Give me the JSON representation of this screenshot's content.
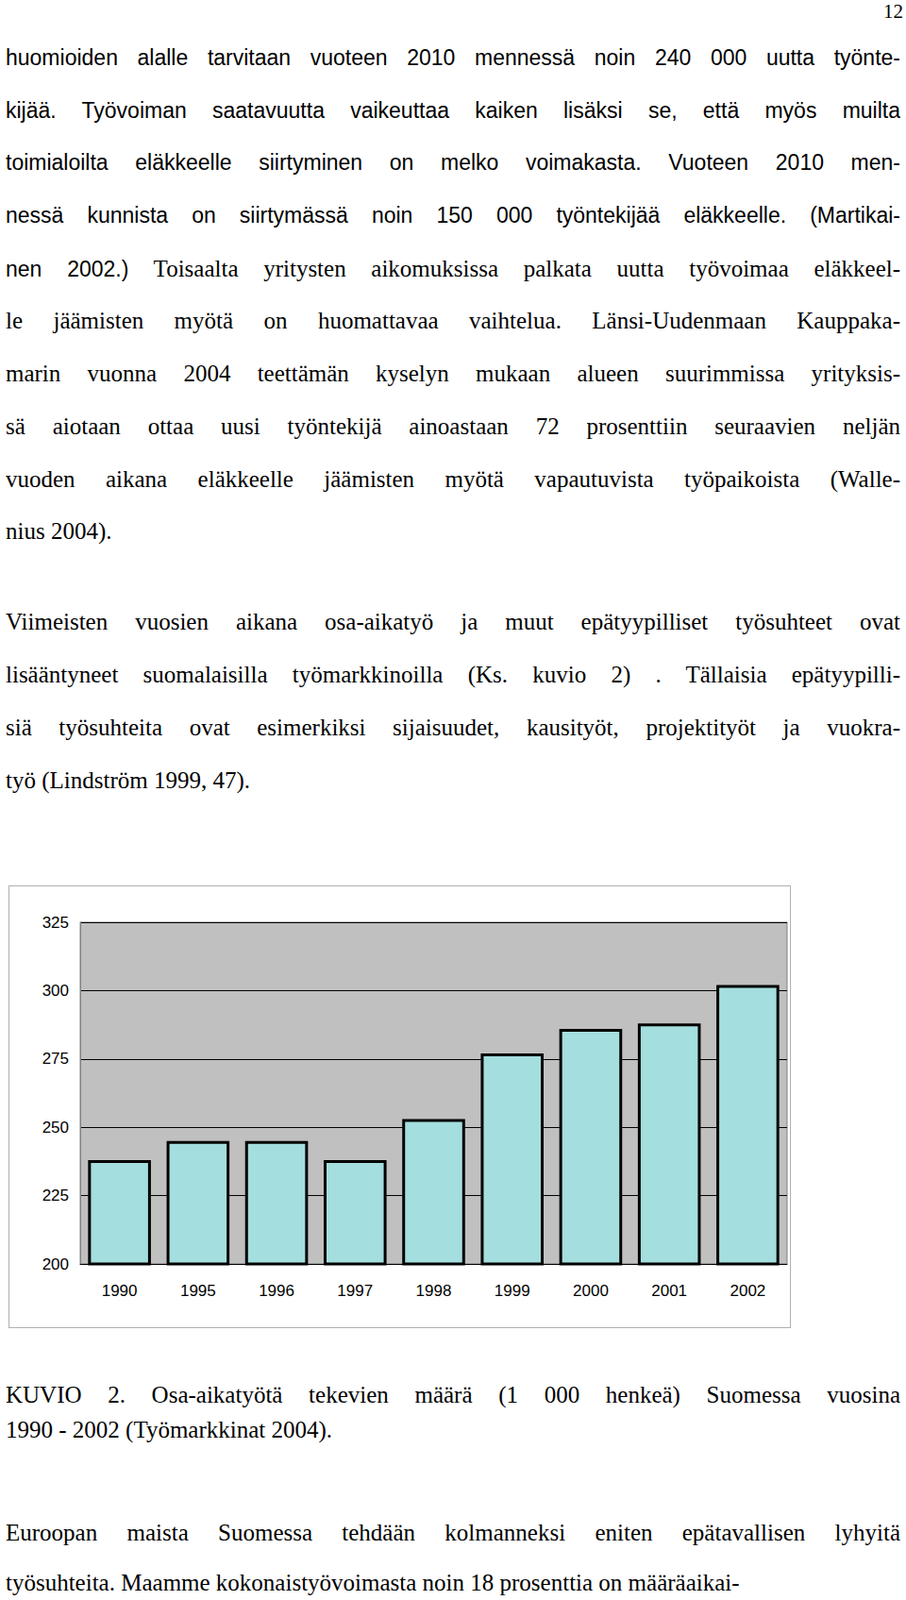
{
  "page_number": "12",
  "paragraphs": [
    {
      "lines": [
        [
          {
            "text": "huomioiden alalle tarvitaan vuoteen 2010 mennessä noin 240 000 uutta työnte-",
            "font": "sans"
          }
        ],
        [
          {
            "text": "kijää. Työvoiman saatavuutta vaikeuttaa kaiken lisäksi se, että myös muilta",
            "font": "sans"
          }
        ],
        [
          {
            "text": "toimialoilta eläkkeelle siirtyminen on melko voimakasta. Vuoteen 2010 men-",
            "font": "sans"
          }
        ],
        [
          {
            "text": "nessä kunnista on siirtymässä noin 150 000 työntekijää eläkkeelle. (Martikai-",
            "font": "sans"
          }
        ],
        [
          {
            "text": "nen 2002.)",
            "font": "sans"
          },
          {
            "text": " Toisaalta yritysten aikomuksissa palkata uutta työvoimaa eläkkeel-",
            "font": "serif"
          }
        ],
        [
          {
            "text": "le jäämisten myötä on huomattavaa vaihtelua. Länsi-Uudenmaan Kauppaka-",
            "font": "serif"
          }
        ],
        [
          {
            "text": "marin vuonna 2004 teettämän kyselyn mukaan alueen suurimmissa yrityksis-",
            "font": "serif"
          }
        ],
        [
          {
            "text": "sä aiotaan ottaa uusi työntekijä ainoastaan 72 prosenttiin seuraavien neljän",
            "font": "serif"
          }
        ],
        [
          {
            "text": "vuoden aikana eläkkeelle jäämisten myötä vapautuvista työpaikoista (Walle-",
            "font": "serif"
          }
        ],
        [
          {
            "text": "nius 2004).",
            "font": "serif"
          }
        ]
      ]
    },
    {
      "lines": [
        [
          {
            "text": "Viimeisten vuosien aikana osa-aikatyö ja muut epätyypilliset työsuhteet ovat",
            "font": "serif"
          }
        ],
        [
          {
            "text": "lisääntyneet suomalaisilla työmarkkinoilla (Ks. kuvio 2) . Tällaisia epätyypilli-",
            "font": "serif"
          }
        ],
        [
          {
            "text": "siä työsuhteita ovat esimerkiksi sijaisuudet, kausityöt, projektityöt ja vuokra-",
            "font": "serif"
          }
        ],
        [
          {
            "text": "työ (Lindström 1999, 47).",
            "font": "serif"
          }
        ]
      ]
    },
    {
      "lines": [
        [
          {
            "text": "KUVIO 2. Osa-aikatyötä tekevien määrä (1 000 henkeä) Suomessa vuosina",
            "font": "serif"
          }
        ],
        [
          {
            "text": "1990 - 2002 (Työmarkkinat 2004).",
            "font": "serif"
          }
        ]
      ]
    },
    {
      "lines": [
        [
          {
            "text": "Euroopan maista Suomessa tehdään kolmanneksi eniten epätavallisen lyhyitä",
            "font": "serif"
          }
        ],
        [
          {
            "text": "työsuhteita. Maamme kokonaistyövoimasta noin 18 prosenttia on määräaikai-",
            "font": "serif"
          }
        ]
      ]
    }
  ],
  "chart_data": {
    "type": "bar",
    "categories": [
      "1990",
      "1995",
      "1996",
      "1997",
      "1998",
      "1999",
      "2000",
      "2001",
      "2002"
    ],
    "values": [
      238,
      245,
      245,
      238,
      253,
      277,
      286,
      288,
      302
    ],
    "color": "#a4dede",
    "ylim": [
      200,
      325
    ],
    "yticks": [
      200,
      225,
      250,
      275,
      300,
      325
    ],
    "grid": true
  }
}
